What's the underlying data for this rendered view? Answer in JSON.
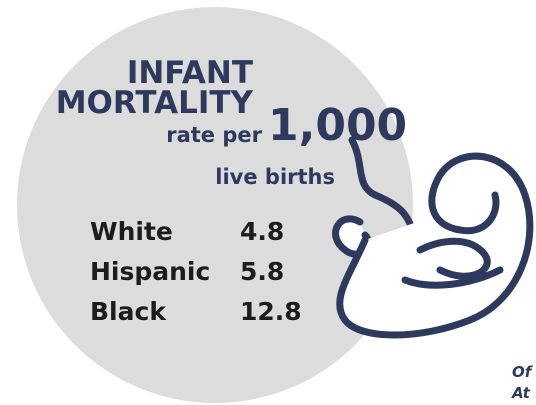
{
  "title": {
    "line1": "INFANT",
    "line2": "MORTALITY",
    "rate": "rate per",
    "number": "1,000",
    "unit": "live births"
  },
  "table": {
    "rows": [
      [
        "White",
        4.8
      ],
      [
        "Hispanic",
        5.8
      ],
      [
        "Black",
        12.8
      ]
    ]
  },
  "footer": {
    "line1": "Of",
    "line2": "At"
  }
}
